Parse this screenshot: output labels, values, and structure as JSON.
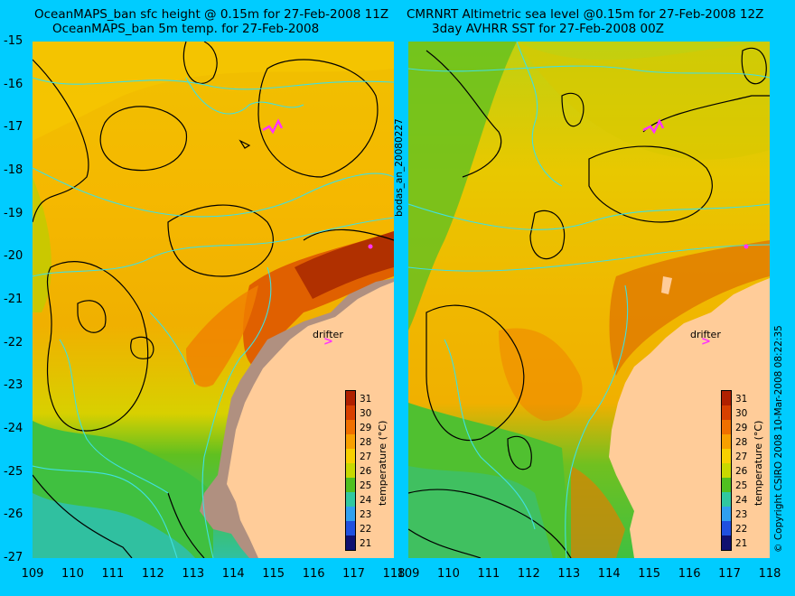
{
  "left_title": {
    "line1": "OceanMAPS_ban sfc height @ 0.15m for 27-Feb-2008 11Z",
    "line2": "OceanMAPS_ban 5m temp. for 27-Feb-2008"
  },
  "right_title": {
    "line1": "CMRNRT Altimetric sea level  @0.15m  for 27-Feb-2008 12Z",
    "line2": "3day AVHRR SST for 27-Feb-2008 00Z"
  },
  "y_axis_labels": [
    "-15",
    "-16",
    "-17",
    "-18",
    "-19",
    "-20",
    "-21",
    "-22",
    "-23",
    "-24",
    "-25",
    "-26",
    "-27"
  ],
  "x_axis_labels": [
    "109",
    "110",
    "111",
    "112",
    "113",
    "114",
    "115",
    "116",
    "117",
    "118"
  ],
  "center_vertical_label": "bodas_an_20080227",
  "right_vertical_label": "© Copyright CSIRO 2008   10-Mar-2008 08:22:35",
  "colorbar": {
    "title": "temperature (°C)",
    "labels": [
      "31",
      "30",
      "29",
      "28",
      "27",
      "26",
      "25",
      "24",
      "23",
      "22",
      "21"
    ],
    "colors": [
      "#b02000",
      "#d84000",
      "#f07000",
      "#f8a000",
      "#f8d000",
      "#c8d800",
      "#50c020",
      "#30c8a0",
      "#30a0f0",
      "#2050e0",
      "#101070"
    ]
  },
  "drifter_label": "drifter",
  "colors": {
    "background": "#00ccff",
    "land": "#ffcc99",
    "land_mask": "#b09080",
    "marker": "#ff33ff"
  }
}
